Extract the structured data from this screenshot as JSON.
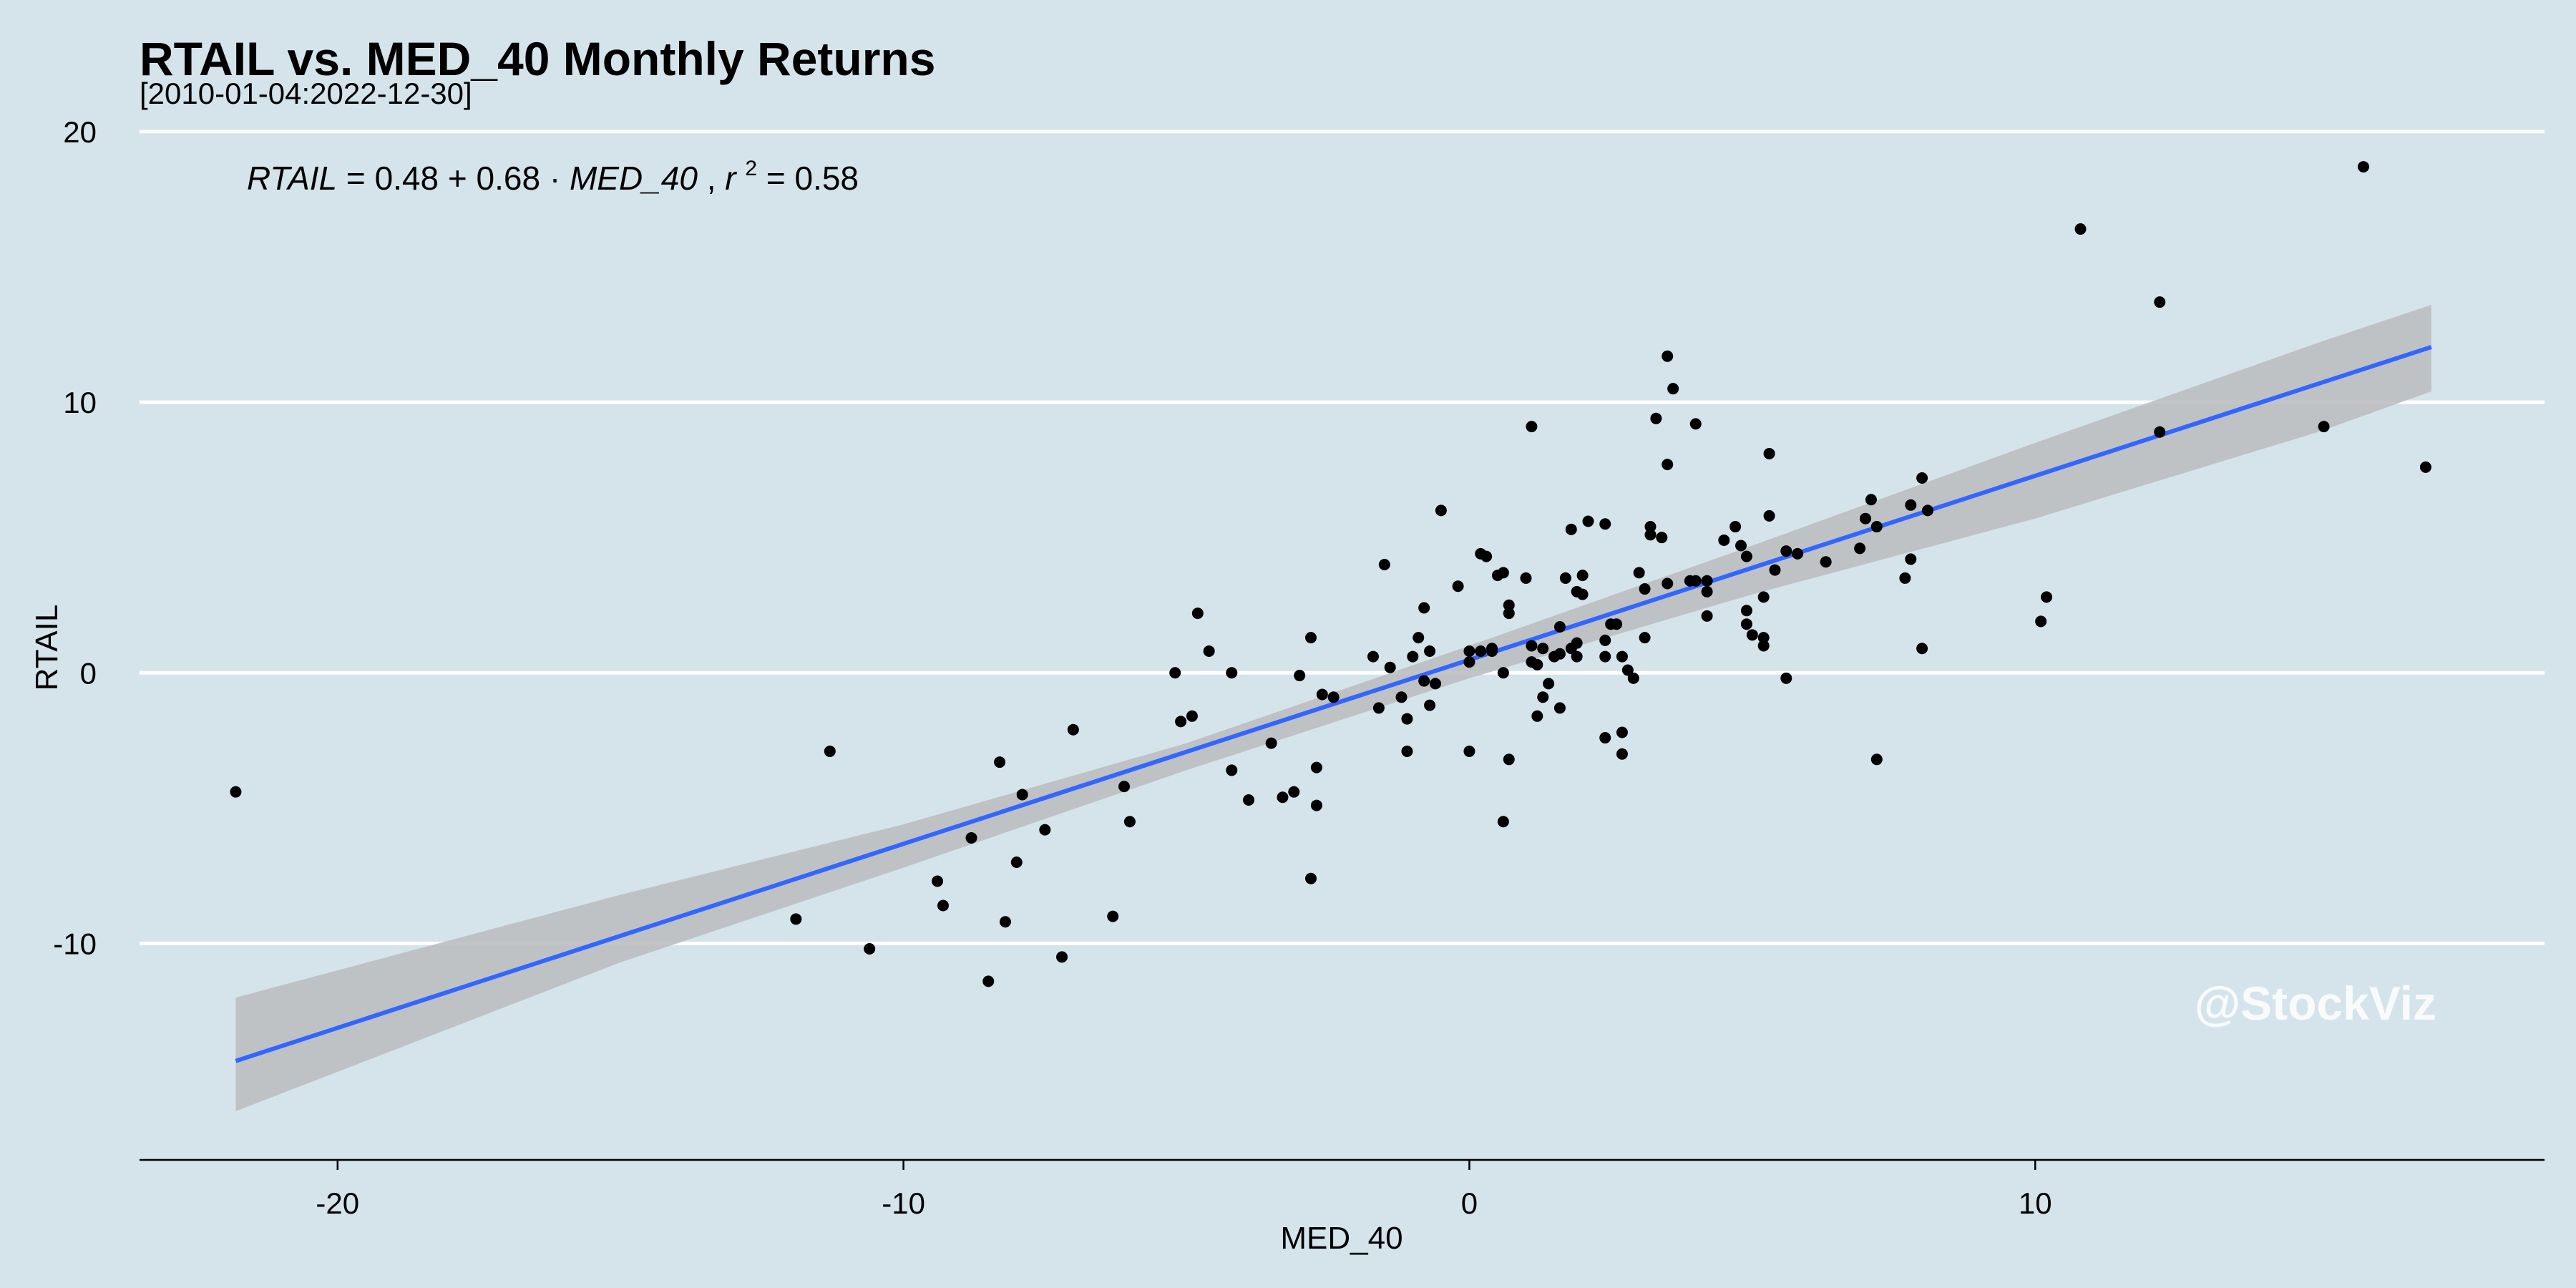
{
  "chart_data": {
    "type": "scatter",
    "title": "RTAIL vs. MED_40 Monthly Returns",
    "subtitle": "[2010-01-04:2022-12-30]",
    "xlabel": "MED_40",
    "ylabel": "RTAIL",
    "xlim": [
      -23.5,
      19
    ],
    "ylim": [
      -18,
      20.5
    ],
    "x_ticks": [
      -20,
      -10,
      0,
      10
    ],
    "y_ticks": [
      -10,
      0,
      10,
      20
    ],
    "grid": "horizontal",
    "equation": {
      "lhs": "RTAIL",
      "rhs_text": "0.48 + 0.68 · ",
      "rhs_var": "MED_40",
      "r_label": "r",
      "r_exp": "2",
      "r_value": "= 0.58"
    },
    "watermark": "@StockViz",
    "colors": {
      "background": "#d5e4eb",
      "grid": "#ffffff",
      "points": "#000000",
      "fit_line": "#3366ff",
      "confidence_band": "#bcbec1"
    },
    "fit": {
      "intercept": 0.48,
      "slope": 0.68,
      "x_range": [
        -21.8,
        17.0
      ]
    },
    "band": {
      "x": [
        -21.8,
        -15,
        -10,
        -5,
        0,
        5,
        10,
        15,
        17.0
      ],
      "lower": [
        -16.2,
        -10.7,
        -7.2,
        -3.6,
        -0.2,
        2.9,
        5.7,
        8.9,
        10.4
      ],
      "upper": [
        -12.0,
        -8.2,
        -5.6,
        -2.6,
        1.0,
        4.7,
        8.5,
        12.2,
        13.6
      ]
    },
    "points": [
      [
        -21.8,
        -4.4
      ],
      [
        -11.9,
        -9.1
      ],
      [
        -11.3,
        -2.9
      ],
      [
        -10.6,
        -10.2
      ],
      [
        -9.4,
        -7.7
      ],
      [
        -9.3,
        -8.6
      ],
      [
        -8.8,
        -6.1
      ],
      [
        -8.5,
        -11.4
      ],
      [
        -8.3,
        -3.3
      ],
      [
        -8.2,
        -9.2
      ],
      [
        -8.0,
        -7.0
      ],
      [
        -7.9,
        -4.5
      ],
      [
        -7.5,
        -5.8
      ],
      [
        -7.2,
        -10.5
      ],
      [
        -7.0,
        -2.1
      ],
      [
        -6.3,
        -9.0
      ],
      [
        -6.1,
        -4.2
      ],
      [
        -6.0,
        -5.5
      ],
      [
        -5.2,
        0.0
      ],
      [
        -5.1,
        -1.8
      ],
      [
        -4.9,
        -1.6
      ],
      [
        -4.8,
        2.2
      ],
      [
        -4.6,
        0.8
      ],
      [
        -4.2,
        -3.6
      ],
      [
        -4.2,
        0.0
      ],
      [
        -3.9,
        -4.7
      ],
      [
        -3.5,
        -2.6
      ],
      [
        -3.3,
        -4.6
      ],
      [
        -3.1,
        -4.4
      ],
      [
        -3.0,
        -0.1
      ],
      [
        -2.8,
        1.3
      ],
      [
        -2.8,
        -7.6
      ],
      [
        -2.7,
        -3.5
      ],
      [
        -2.7,
        -4.9
      ],
      [
        -2.6,
        -0.8
      ],
      [
        -2.4,
        -0.9
      ],
      [
        -1.7,
        0.6
      ],
      [
        -1.6,
        -1.3
      ],
      [
        -1.5,
        4.0
      ],
      [
        -1.4,
        0.2
      ],
      [
        -1.2,
        -0.9
      ],
      [
        -1.1,
        -1.7
      ],
      [
        -1.1,
        -2.9
      ],
      [
        -1.0,
        0.6
      ],
      [
        -0.9,
        1.3
      ],
      [
        -0.8,
        2.4
      ],
      [
        -0.8,
        -0.3
      ],
      [
        -0.7,
        0.8
      ],
      [
        -0.7,
        -1.2
      ],
      [
        -0.6,
        -0.4
      ],
      [
        -0.5,
        6.0
      ],
      [
        -0.2,
        3.2
      ],
      [
        0.0,
        0.4
      ],
      [
        0.0,
        0.8
      ],
      [
        0.0,
        -2.9
      ],
      [
        0.2,
        4.4
      ],
      [
        0.2,
        0.8
      ],
      [
        0.3,
        4.3
      ],
      [
        0.4,
        0.9
      ],
      [
        0.4,
        0.8
      ],
      [
        0.5,
        3.6
      ],
      [
        0.6,
        -5.5
      ],
      [
        0.6,
        0.0
      ],
      [
        0.6,
        3.7
      ],
      [
        0.7,
        -3.2
      ],
      [
        0.7,
        2.2
      ],
      [
        0.7,
        2.5
      ],
      [
        1.0,
        3.5
      ],
      [
        1.1,
        9.1
      ],
      [
        1.1,
        1.0
      ],
      [
        1.1,
        0.4
      ],
      [
        1.2,
        0.3
      ],
      [
        1.2,
        -1.6
      ],
      [
        1.3,
        0.9
      ],
      [
        1.3,
        -0.9
      ],
      [
        1.4,
        -0.4
      ],
      [
        1.5,
        0.6
      ],
      [
        1.6,
        0.7
      ],
      [
        1.6,
        -1.3
      ],
      [
        1.6,
        1.7
      ],
      [
        1.7,
        3.5
      ],
      [
        1.8,
        5.3
      ],
      [
        1.8,
        0.9
      ],
      [
        1.9,
        1.1
      ],
      [
        1.9,
        0.6
      ],
      [
        1.9,
        3.0
      ],
      [
        2.0,
        3.6
      ],
      [
        2.0,
        2.9
      ],
      [
        2.1,
        5.6
      ],
      [
        2.4,
        5.5
      ],
      [
        2.4,
        1.2
      ],
      [
        2.4,
        0.6
      ],
      [
        2.4,
        -2.4
      ],
      [
        2.5,
        1.8
      ],
      [
        2.6,
        1.8
      ],
      [
        2.7,
        -2.2
      ],
      [
        2.7,
        -3.0
      ],
      [
        2.7,
        0.6
      ],
      [
        2.8,
        0.1
      ],
      [
        2.9,
        -0.2
      ],
      [
        3.0,
        3.7
      ],
      [
        3.1,
        3.1
      ],
      [
        3.1,
        1.3
      ],
      [
        3.2,
        5.4
      ],
      [
        3.2,
        5.1
      ],
      [
        3.3,
        9.4
      ],
      [
        3.4,
        5.0
      ],
      [
        3.5,
        11.7
      ],
      [
        3.5,
        7.7
      ],
      [
        3.5,
        3.3
      ],
      [
        3.6,
        10.5
      ],
      [
        3.9,
        3.4
      ],
      [
        4.0,
        9.2
      ],
      [
        4.0,
        3.4
      ],
      [
        4.2,
        3.4
      ],
      [
        4.2,
        3.0
      ],
      [
        4.2,
        2.1
      ],
      [
        4.5,
        4.9
      ],
      [
        4.7,
        5.4
      ],
      [
        4.8,
        4.7
      ],
      [
        4.9,
        2.3
      ],
      [
        4.9,
        1.8
      ],
      [
        4.9,
        4.3
      ],
      [
        5.0,
        1.4
      ],
      [
        5.2,
        2.8
      ],
      [
        5.2,
        1.3
      ],
      [
        5.2,
        1.0
      ],
      [
        5.3,
        8.1
      ],
      [
        5.3,
        5.8
      ],
      [
        5.4,
        3.8
      ],
      [
        5.6,
        4.5
      ],
      [
        5.6,
        -0.2
      ],
      [
        5.8,
        4.4
      ],
      [
        6.3,
        4.1
      ],
      [
        6.9,
        4.6
      ],
      [
        7.0,
        5.7
      ],
      [
        7.1,
        6.4
      ],
      [
        7.2,
        5.4
      ],
      [
        7.2,
        -3.2
      ],
      [
        7.7,
        3.5
      ],
      [
        7.8,
        4.2
      ],
      [
        7.8,
        6.2
      ],
      [
        8.0,
        7.2
      ],
      [
        8.0,
        0.9
      ],
      [
        8.1,
        6.0
      ],
      [
        10.1,
        1.9
      ],
      [
        10.2,
        2.8
      ],
      [
        10.8,
        16.4
      ],
      [
        12.2,
        13.7
      ],
      [
        12.2,
        8.9
      ],
      [
        15.1,
        9.1
      ],
      [
        15.8,
        18.7
      ],
      [
        16.9,
        7.6
      ]
    ]
  }
}
